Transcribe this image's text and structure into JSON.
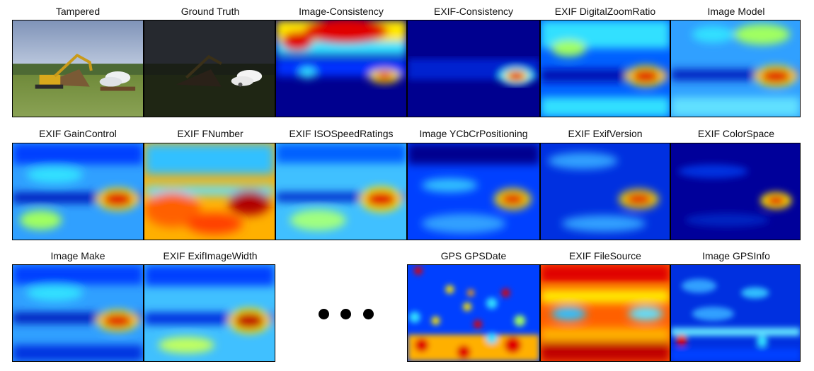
{
  "panels": [
    {
      "title": "Tampered",
      "kind": "photo"
    },
    {
      "title": "Ground Truth",
      "kind": "mask"
    },
    {
      "title": "Image-Consistency",
      "kind": "heat"
    },
    {
      "title": "EXIF-Consistency",
      "kind": "heat"
    },
    {
      "title": "EXIF DigitalZoomRatio",
      "kind": "heat"
    },
    {
      "title": "Image Model",
      "kind": "heat"
    },
    {
      "title": "EXIF GainControl",
      "kind": "heat"
    },
    {
      "title": "EXIF FNumber",
      "kind": "heat"
    },
    {
      "title": "EXIF ISOSpeedRatings",
      "kind": "heat"
    },
    {
      "title": "Image YCbCrPositioning",
      "kind": "heat"
    },
    {
      "title": "EXIF ExifVersion",
      "kind": "heat"
    },
    {
      "title": "EXIF ColorSpace",
      "kind": "heat"
    },
    {
      "title": "Image Make",
      "kind": "heat"
    },
    {
      "title": "EXIF ExifImageWidth",
      "kind": "heat"
    },
    {
      "title": "GPS GPSDate",
      "kind": "heat"
    },
    {
      "title": "EXIF FileSource",
      "kind": "heat"
    },
    {
      "title": "Image GPSInfo",
      "kind": "heat"
    }
  ],
  "colors": {
    "deep_blue": "#00008f",
    "blue": "#0030ff",
    "cyan": "#30e0ff",
    "yellow": "#ffe800",
    "red": "#e00000",
    "dark_red": "#800000"
  }
}
